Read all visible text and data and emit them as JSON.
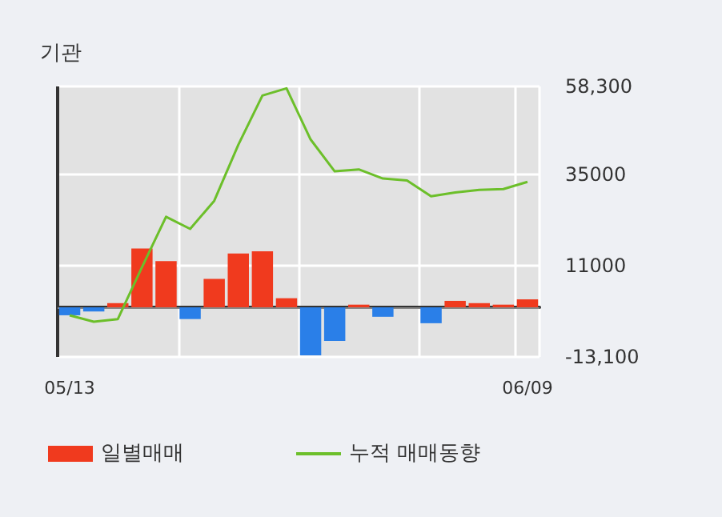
{
  "chart_data": {
    "type": "bar",
    "title": "기관",
    "categories": [
      "05/13",
      null,
      null,
      null,
      null,
      null,
      null,
      null,
      null,
      null,
      null,
      null,
      null,
      null,
      null,
      null,
      null,
      null,
      null,
      "06/09"
    ],
    "series": [
      {
        "name": "일별매매",
        "colors": [
          "#2a7fe8",
          "#2a7fe8",
          "#f03a1e",
          "#f03a1e",
          "#f03a1e",
          "#2a7fe8",
          "#f03a1e",
          "#f03a1e",
          "#f03a1e",
          "#f03a1e",
          "#2a7fe8",
          "#2a7fe8",
          "#f03a1e",
          "#2a7fe8",
          "#f03a1e",
          "#2a7fe8",
          "#f03a1e",
          "#f03a1e",
          "#f03a1e",
          "#f03a1e"
        ],
        "values": [
          -2100,
          -1100,
          1100,
          15500,
          12200,
          -3100,
          7500,
          14200,
          14800,
          2400,
          -12700,
          -8900,
          700,
          -2500,
          0,
          -4200,
          1700,
          1100,
          700,
          2100
        ]
      },
      {
        "name": "누적 매매동향",
        "type": "line",
        "color": "#6cbf2a",
        "values": [
          -2100,
          -3800,
          -3100,
          10600,
          23900,
          20700,
          28100,
          42900,
          55900,
          57800,
          44300,
          35900,
          36400,
          34000,
          33500,
          29300,
          30300,
          31000,
          31200,
          33100
        ]
      }
    ],
    "ylim": [
      -13100,
      58300
    ],
    "yticks": [
      {
        "value": -13100,
        "label": "-13,100"
      },
      {
        "value": 11000,
        "label": "11000"
      },
      {
        "value": 35000,
        "label": "35000"
      },
      {
        "value": 58300,
        "label": "58,300"
      }
    ],
    "grid": true,
    "legend": "bottom",
    "marker": "none",
    "line_style": "solid"
  }
}
